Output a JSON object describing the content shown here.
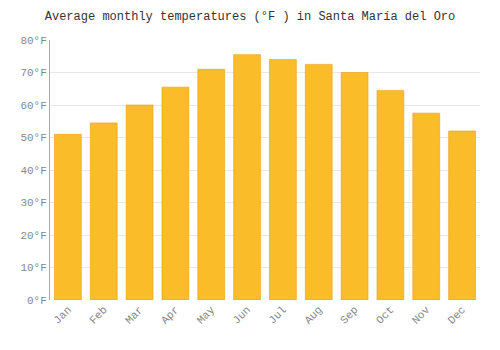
{
  "chart_data": {
    "type": "bar",
    "title": "Average monthly temperatures (°F ) in Santa María del Oro",
    "categories": [
      "Jan",
      "Feb",
      "Mar",
      "Apr",
      "May",
      "Jun",
      "Jul",
      "Aug",
      "Sep",
      "Oct",
      "Nov",
      "Dec"
    ],
    "values": [
      51,
      54.5,
      60,
      65.5,
      71,
      75.5,
      74,
      72.5,
      70,
      64.5,
      57.5,
      52
    ],
    "color": "#FBBC2A",
    "ylim": [
      0,
      80
    ],
    "yticks": [
      {
        "value": 0,
        "label": "0°F"
      },
      {
        "value": 10,
        "label": "10°F"
      },
      {
        "value": 20,
        "label": "20°F"
      },
      {
        "value": 30,
        "label": "30°F"
      },
      {
        "value": 40,
        "label": "40°F"
      },
      {
        "value": 50,
        "label": "50°F"
      },
      {
        "value": 60,
        "label": "60°F"
      },
      {
        "value": 70,
        "label": "70°F"
      },
      {
        "value": 80,
        "label": "80°F"
      }
    ],
    "grid": true
  }
}
